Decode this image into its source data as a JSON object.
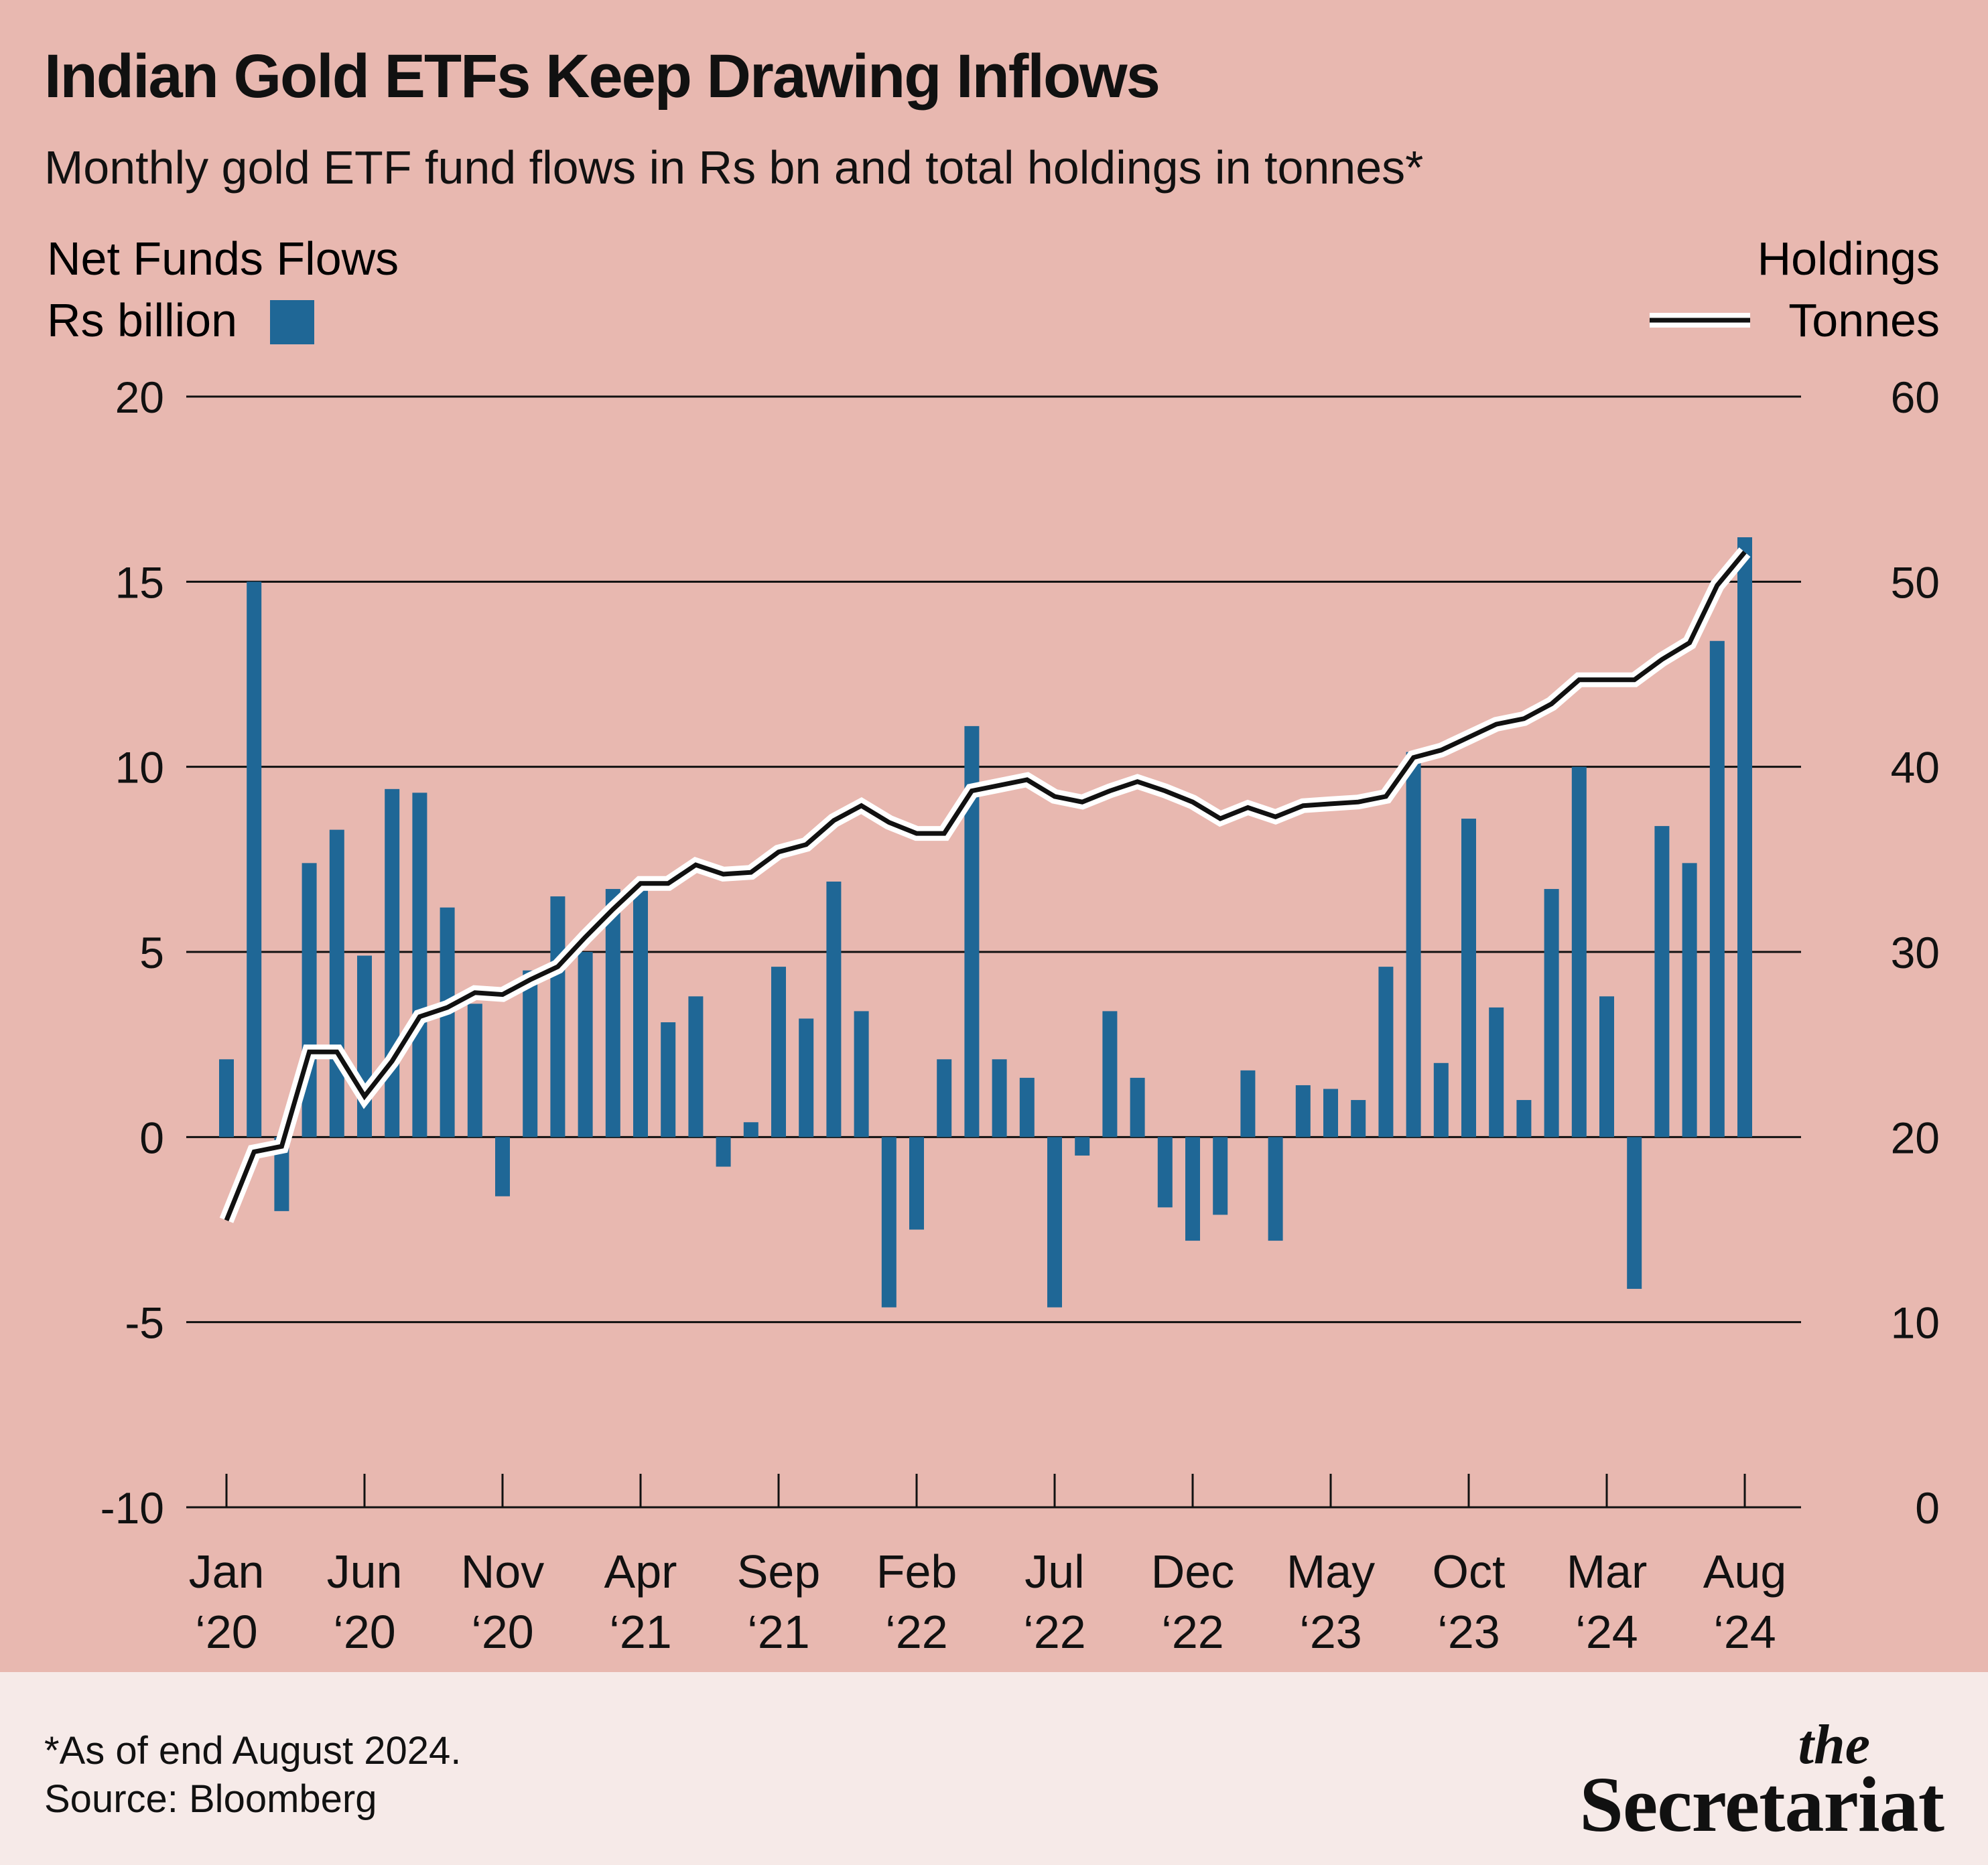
{
  "title": "Indian Gold ETFs Keep Drawing Inflows",
  "subtitle": "Monthly gold ETF fund flows in Rs bn and total holdings in tonnes*",
  "legend": {
    "left_line1": "Net Funds Flows",
    "left_line2": "Rs billion",
    "right_line1": "Holdings",
    "right_line2": "Tonnes"
  },
  "footer": {
    "footnote": "*As of end August 2024.",
    "source": "Source: Bloomberg"
  },
  "logo": {
    "small": "the",
    "main": "Secretariat"
  },
  "colors": {
    "background": "#e8b8b0",
    "footer_background": "#f6eae8",
    "bar": "#1f6796",
    "line": "#111111",
    "line_halo": "#ffffff",
    "grid": "#111111"
  },
  "chart_data": {
    "type": "bar",
    "combined_with": "line",
    "left_axis": {
      "label": "Net Funds Flows, Rs billion",
      "ylim": [
        -10,
        20
      ],
      "ticks": [
        "-10",
        "-5",
        "0",
        "5",
        "10",
        "15",
        "20"
      ]
    },
    "right_axis": {
      "label": "Holdings, Tonnes",
      "ylim": [
        0,
        60
      ],
      "ticks": [
        "0",
        "10",
        "20",
        "30",
        "40",
        "50",
        "60"
      ]
    },
    "x_tick_labels": [
      [
        "Jan",
        "‘20"
      ],
      [
        "Jun",
        "‘20"
      ],
      [
        "Nov",
        "‘20"
      ],
      [
        "Apr",
        "‘21"
      ],
      [
        "Sep",
        "‘21"
      ],
      [
        "Feb",
        "‘22"
      ],
      [
        "Jul",
        "‘22"
      ],
      [
        "Dec",
        "‘22"
      ],
      [
        "May",
        "‘23"
      ],
      [
        "Oct",
        "‘23"
      ],
      [
        "Mar",
        "‘24"
      ],
      [
        "Aug",
        "‘24"
      ]
    ],
    "months": [
      "Jan 2020",
      "Feb 2020",
      "Mar 2020",
      "Apr 2020",
      "May 2020",
      "Jun 2020",
      "Jul 2020",
      "Aug 2020",
      "Sep 2020",
      "Oct 2020",
      "Nov 2020",
      "Dec 2020",
      "Jan 2021",
      "Feb 2021",
      "Mar 2021",
      "Apr 2021",
      "May 2021",
      "Jun 2021",
      "Jul 2021",
      "Aug 2021",
      "Sep 2021",
      "Oct 2021",
      "Nov 2021",
      "Dec 2021",
      "Jan 2022",
      "Feb 2022",
      "Mar 2022",
      "Apr 2022",
      "May 2022",
      "Jun 2022",
      "Jul 2022",
      "Aug 2022",
      "Sep 2022",
      "Oct 2022",
      "Nov 2022",
      "Dec 2022",
      "Jan 2023",
      "Feb 2023",
      "Mar 2023",
      "Apr 2023",
      "May 2023",
      "Jun 2023",
      "Jul 2023",
      "Aug 2023",
      "Sep 2023",
      "Oct 2023",
      "Nov 2023",
      "Dec 2023",
      "Jan 2024",
      "Feb 2024",
      "Mar 2024",
      "Apr 2024",
      "May 2024",
      "Jun 2024",
      "Jul 2024",
      "Aug 2024"
    ],
    "series": [
      {
        "name": "Net Funds Flows",
        "type": "bar",
        "axis": "left",
        "values": [
          2.1,
          15.0,
          -2.0,
          7.4,
          8.3,
          4.9,
          9.4,
          9.3,
          6.2,
          3.6,
          -1.6,
          4.5,
          6.5,
          5.0,
          6.7,
          6.8,
          3.1,
          3.8,
          -0.8,
          0.4,
          4.6,
          3.2,
          6.9,
          3.4,
          -4.6,
          -2.5,
          2.1,
          11.1,
          2.1,
          1.6,
          -4.6,
          -0.5,
          3.4,
          1.6,
          -1.9,
          -2.8,
          -2.1,
          1.8,
          -2.8,
          1.4,
          1.3,
          1.0,
          4.6,
          10.4,
          2.0,
          8.6,
          3.5,
          1.0,
          6.7,
          10.0,
          3.8,
          -4.1,
          8.4,
          7.4,
          13.4,
          16.2
        ]
      },
      {
        "name": "Holdings",
        "type": "line",
        "axis": "right",
        "values": [
          15.5,
          19.2,
          19.5,
          24.6,
          24.6,
          22.2,
          24.1,
          26.5,
          27.0,
          27.8,
          27.7,
          28.5,
          29.2,
          30.8,
          32.3,
          33.7,
          33.7,
          34.7,
          34.2,
          34.3,
          35.4,
          35.8,
          37.1,
          37.9,
          37.0,
          36.4,
          36.4,
          38.7,
          39.0,
          39.3,
          38.4,
          38.1,
          38.7,
          39.2,
          38.7,
          38.1,
          37.2,
          37.8,
          37.3,
          37.9,
          38.0,
          38.1,
          38.4,
          40.5,
          40.9,
          41.6,
          42.3,
          42.6,
          43.4,
          44.7,
          44.7,
          44.7,
          45.8,
          46.7,
          49.8,
          51.6
        ]
      }
    ],
    "grid": true
  }
}
